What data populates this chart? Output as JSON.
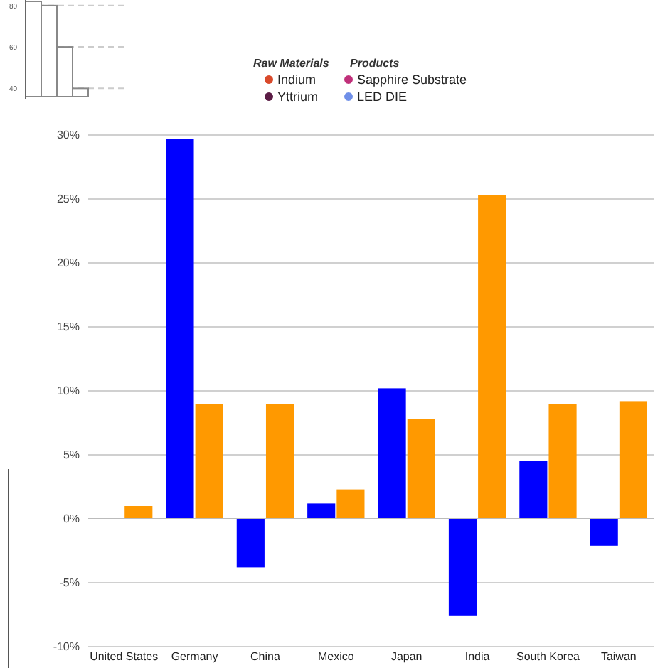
{
  "chart_data": [
    {
      "type": "bar",
      "categories": [
        "United States",
        "Germany",
        "China",
        "Mexico",
        "Japan",
        "India",
        "South Korea",
        "Taiwan"
      ],
      "series": [
        {
          "color": "#0000ff",
          "values": [
            null,
            29.7,
            -3.8,
            1.2,
            10.2,
            -7.6,
            4.5,
            -2.1
          ]
        },
        {
          "color": "#ff9900",
          "values": [
            1.0,
            9.0,
            9.0,
            2.3,
            7.8,
            25.3,
            9.0,
            9.2
          ]
        }
      ],
      "ylim": [
        -10,
        30
      ],
      "yticks": [
        {
          "value": -10,
          "label": "-10%"
        },
        {
          "value": -5,
          "label": "-5%"
        },
        {
          "value": 0,
          "label": "0%"
        },
        {
          "value": 5,
          "label": "5%"
        },
        {
          "value": 10,
          "label": "10%"
        },
        {
          "value": 15,
          "label": "15%"
        },
        {
          "value": 20,
          "label": "20%"
        },
        {
          "value": 25,
          "label": "25%"
        },
        {
          "value": 30,
          "label": "30%"
        }
      ],
      "grid": "y"
    },
    {
      "type": "bar",
      "categories": [
        null,
        null,
        null,
        null
      ],
      "values": [
        82,
        80,
        60,
        40
      ],
      "color": "#ffffff",
      "ylim": [
        36,
        82
      ],
      "yticks": [
        40,
        60,
        80
      ],
      "grid": "y",
      "annotations": [
        "Raw Materials",
        "Indium",
        "Yttrium",
        "Products",
        "Sapphire Substrate",
        "LED DIE"
      ]
    }
  ]
}
